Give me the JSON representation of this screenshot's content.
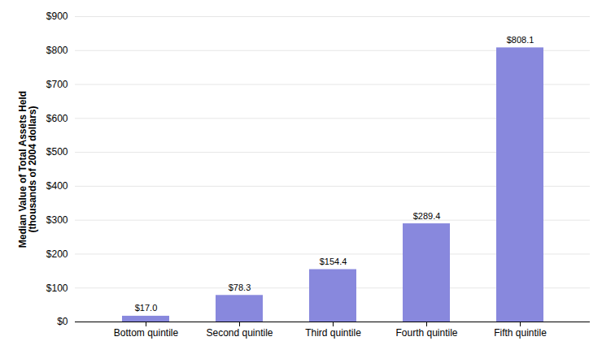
{
  "chart_data": {
    "type": "bar",
    "categories": [
      "Bottom quintile",
      "Second quintile",
      "Third quintile",
      "Fourth quintile",
      "Fifth quintile"
    ],
    "values": [
      17.0,
      78.3,
      154.4,
      289.4,
      808.1
    ],
    "value_labels": [
      "$17.0",
      "$78.3",
      "$154.4",
      "$289.4",
      "$808.1"
    ],
    "data_labels": true,
    "color": "#8888dd",
    "ylabel": "Median Value of Total Assets Held\n(thousands of 2004 dollars)",
    "ylim": [
      0,
      900
    ],
    "yticks": [
      {
        "value": 0,
        "label": "$0"
      },
      {
        "value": 100,
        "label": "$100"
      },
      {
        "value": 200,
        "label": "$200"
      },
      {
        "value": 300,
        "label": "$300"
      },
      {
        "value": 400,
        "label": "$400"
      },
      {
        "value": 500,
        "label": "$500"
      },
      {
        "value": 600,
        "label": "$600"
      },
      {
        "value": 700,
        "label": "$700"
      },
      {
        "value": 800,
        "label": "$800"
      },
      {
        "value": 900,
        "label": "$900"
      }
    ],
    "grid": true
  }
}
